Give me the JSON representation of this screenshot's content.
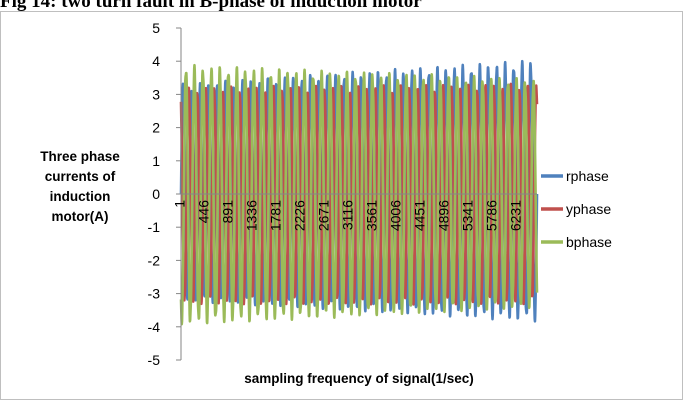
{
  "caption": "Fig 14: two turn fault in B-phase of induction motor",
  "chart_data": {
    "type": "line",
    "title": "",
    "xlabel": "sampling frequency of signal(1/sec)",
    "ylabel_lines": [
      "Three phase",
      "currents of",
      "induction",
      "motor(A)"
    ],
    "ylim": [
      -5,
      5
    ],
    "yticks": [
      5,
      4,
      3,
      2,
      1,
      0,
      -1,
      -2,
      -3,
      -4,
      -5
    ],
    "xlim": [
      1,
      6601
    ],
    "xticks": [
      1,
      446,
      891,
      1336,
      1781,
      2226,
      2671,
      3116,
      3561,
      4006,
      4451,
      4896,
      5341,
      5786,
      6231
    ],
    "grid": false,
    "legend_position": "right",
    "cycles": 42,
    "series": [
      {
        "name": "rphase",
        "color": "#4f81bd",
        "amp_start": 3.2,
        "amp_end": 3.9,
        "trough_start": -3.1,
        "trough_end": -3.7,
        "phase_deg": 0
      },
      {
        "name": "yphase",
        "color": "#c0504d",
        "amp_start": 3.1,
        "amp_end": 3.2,
        "trough_start": -3.2,
        "trough_end": -3.2,
        "phase_deg": 120
      },
      {
        "name": "bphase",
        "color": "#9bbb59",
        "amp_start": 3.75,
        "amp_end": 3.35,
        "trough_start": -3.8,
        "trough_end": -3.3,
        "phase_deg": 240
      }
    ]
  }
}
